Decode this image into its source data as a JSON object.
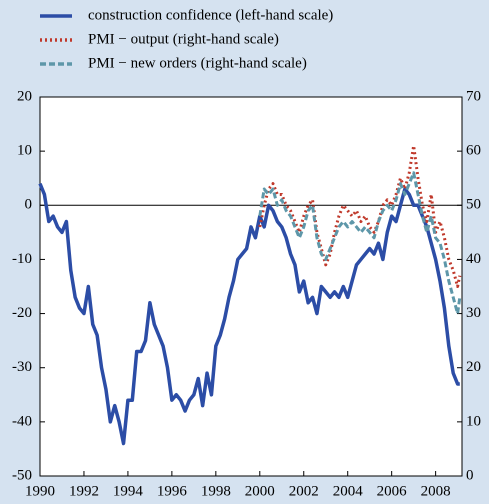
{
  "chart_data": {
    "type": "line",
    "xlim": [
      1990,
      2009.2
    ],
    "xticks": [
      1990,
      1992,
      1994,
      1996,
      1998,
      2000,
      2002,
      2004,
      2006,
      2008
    ],
    "ylim": [
      -50,
      20
    ],
    "yticks": [
      -50,
      -40,
      -30,
      -20,
      -10,
      0,
      10,
      20
    ],
    "y2lim": [
      0,
      70
    ],
    "y2ticks": [
      0,
      10,
      20,
      30,
      40,
      50,
      60,
      70
    ],
    "series": [
      {
        "name": "construction confidence (left-hand scale)",
        "color": "#2c4da6",
        "style": "solid",
        "x": [
          1990.0,
          1990.2,
          1990.4,
          1990.6,
          1990.8,
          1991.0,
          1991.2,
          1991.4,
          1991.6,
          1991.8,
          1992.0,
          1992.2,
          1992.4,
          1992.6,
          1992.8,
          1993.0,
          1993.2,
          1993.4,
          1993.6,
          1993.8,
          1994.0,
          1994.2,
          1994.4,
          1994.6,
          1994.8,
          1995.0,
          1995.2,
          1995.4,
          1995.6,
          1995.8,
          1996.0,
          1996.2,
          1996.4,
          1996.6,
          1996.8,
          1997.0,
          1997.2,
          1997.4,
          1997.6,
          1997.8,
          1998.0,
          1998.2,
          1998.4,
          1998.6,
          1998.8,
          1999.0,
          1999.2,
          1999.4,
          1999.6,
          1999.8,
          2000.0,
          2000.2,
          2000.4,
          2000.6,
          2000.8,
          2001.0,
          2001.2,
          2001.4,
          2001.6,
          2001.8,
          2002.0,
          2002.2,
          2002.4,
          2002.6,
          2002.8,
          2003.0,
          2003.2,
          2003.4,
          2003.6,
          2003.8,
          2004.0,
          2004.2,
          2004.4,
          2004.6,
          2004.8,
          2005.0,
          2005.2,
          2005.4,
          2005.6,
          2005.8,
          2006.0,
          2006.2,
          2006.4,
          2006.6,
          2006.8,
          2007.0,
          2007.2,
          2007.4,
          2007.6,
          2007.8,
          2008.0,
          2008.2,
          2008.4,
          2008.6,
          2008.8,
          2009.0,
          2009.1
        ],
        "values": [
          4,
          2,
          -3,
          -2,
          -4,
          -5,
          -3,
          -12,
          -17,
          -19,
          -20,
          -15,
          -22,
          -24,
          -30,
          -34,
          -40,
          -37,
          -40,
          -44,
          -36,
          -36,
          -27,
          -27,
          -25,
          -18,
          -22,
          -24,
          -26,
          -30,
          -36,
          -35,
          -36,
          -38,
          -36,
          -35,
          -32,
          -37,
          -31,
          -35,
          -26,
          -24,
          -21,
          -17,
          -14,
          -10,
          -9,
          -8,
          -4,
          -6,
          -2,
          -4,
          0,
          -1,
          -3,
          -4,
          -6,
          -9,
          -11,
          -16,
          -14,
          -18,
          -17,
          -20,
          -15,
          -16,
          -17,
          -16,
          -17,
          -15,
          -17,
          -14,
          -11,
          -10,
          -9,
          -8,
          -9,
          -7,
          -10,
          -5,
          -2,
          -3,
          0,
          3,
          2,
          0,
          0,
          -2,
          -4,
          -7,
          -10,
          -14,
          -19,
          -26,
          -31,
          -33,
          -33
        ]
      },
      {
        "name": "PMI − output (right-hand scale)",
        "color": "#c0392b",
        "style": "dotted",
        "axis": "y2",
        "x": [
          2000.0,
          2000.2,
          2000.4,
          2000.6,
          2000.8,
          2001.0,
          2001.2,
          2001.4,
          2001.6,
          2001.8,
          2002.0,
          2002.2,
          2002.4,
          2002.6,
          2002.8,
          2003.0,
          2003.2,
          2003.4,
          2003.6,
          2003.8,
          2004.0,
          2004.2,
          2004.4,
          2004.6,
          2004.8,
          2005.0,
          2005.2,
          2005.4,
          2005.6,
          2005.8,
          2006.0,
          2006.2,
          2006.4,
          2006.6,
          2006.8,
          2007.0,
          2007.2,
          2007.4,
          2007.6,
          2007.8,
          2008.0,
          2008.2,
          2008.4,
          2008.6,
          2008.8,
          2009.0,
          2009.1
        ],
        "values": [
          46,
          50,
          53,
          54,
          52,
          52,
          50,
          49,
          47,
          45,
          48,
          50,
          51,
          45,
          42,
          39,
          41,
          45,
          48,
          50,
          49,
          48,
          49,
          47,
          48,
          46,
          45,
          47,
          50,
          51,
          50,
          52,
          55,
          53,
          56,
          61,
          55,
          50,
          47,
          52,
          45,
          47,
          44,
          40,
          38,
          35,
          37
        ]
      },
      {
        "name": "PMI − new orders (right-hand scale)",
        "color": "#5e97a9",
        "style": "dashed",
        "axis": "y2",
        "x": [
          2000.0,
          2000.2,
          2000.4,
          2000.6,
          2000.8,
          2001.0,
          2001.2,
          2001.4,
          2001.6,
          2001.8,
          2002.0,
          2002.2,
          2002.4,
          2002.6,
          2002.8,
          2003.0,
          2003.2,
          2003.4,
          2003.6,
          2003.8,
          2004.0,
          2004.2,
          2004.4,
          2004.6,
          2004.8,
          2005.0,
          2005.2,
          2005.4,
          2005.6,
          2005.8,
          2006.0,
          2006.2,
          2006.4,
          2006.6,
          2006.8,
          2007.0,
          2007.2,
          2007.4,
          2007.6,
          2007.8,
          2008.0,
          2008.2,
          2008.4,
          2008.6,
          2008.8,
          2009.0,
          2009.1
        ],
        "values": [
          48,
          53,
          52,
          53,
          50,
          51,
          49,
          48,
          46,
          44,
          46,
          49,
          50,
          44,
          41,
          40,
          42,
          44,
          46,
          47,
          46,
          47,
          46,
          45,
          46,
          45,
          44,
          47,
          49,
          50,
          49,
          51,
          54,
          52,
          54,
          56,
          52,
          48,
          45,
          48,
          44,
          43,
          40,
          36,
          33,
          30,
          33
        ]
      }
    ]
  }
}
